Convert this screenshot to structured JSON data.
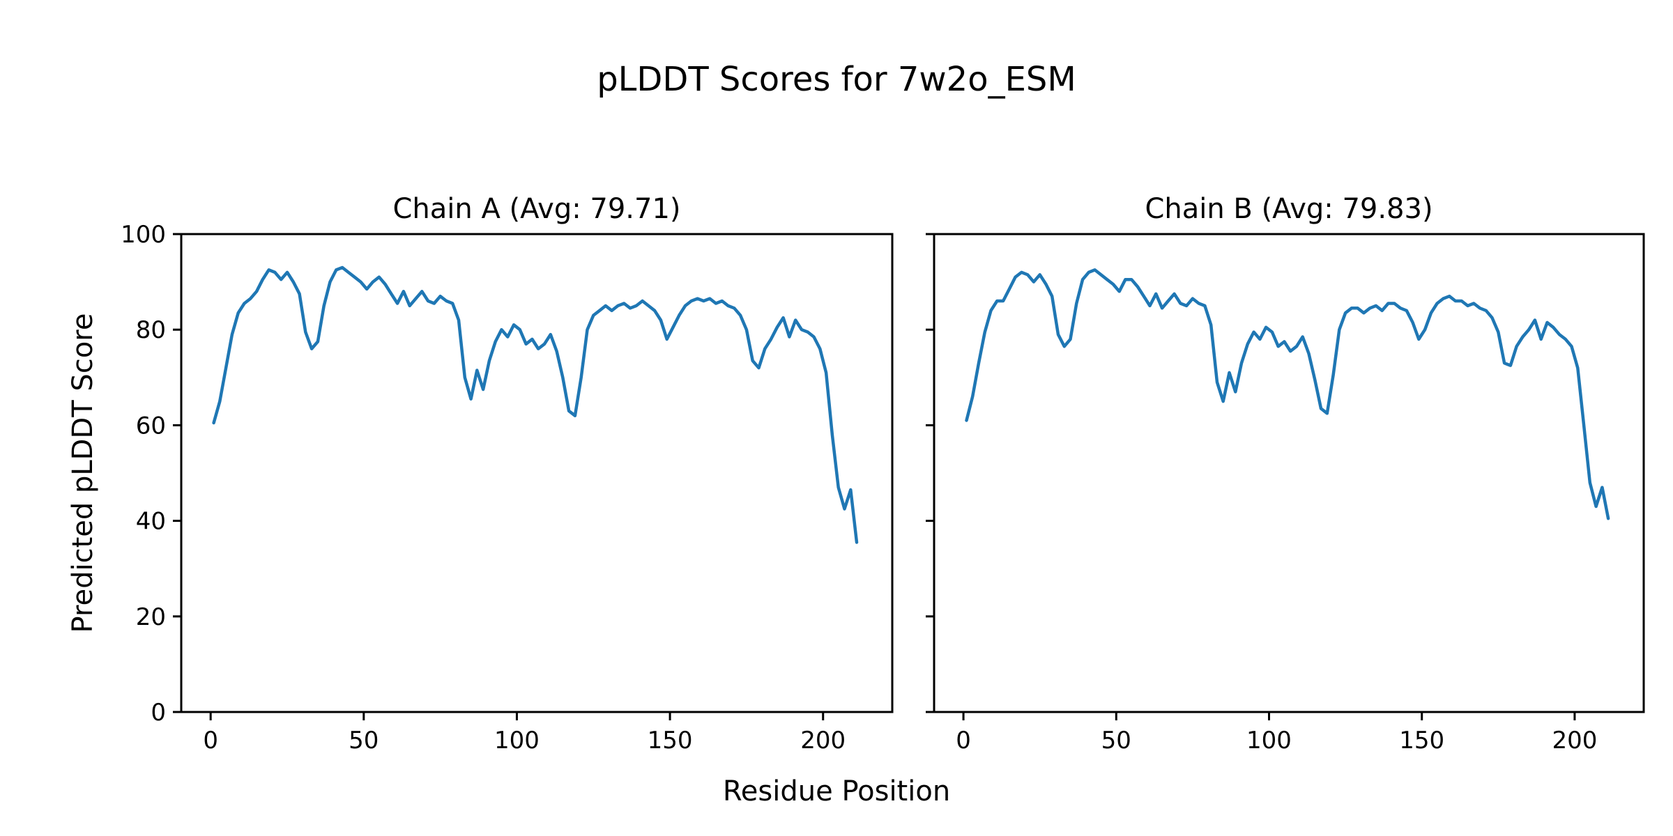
{
  "figure": {
    "title": "pLDDT Scores for 7w2o_ESM",
    "xlabel": "Residue Position",
    "ylabel": "Predicted pLDDT Score",
    "line_color": "#1f77b4",
    "background": "#ffffff"
  },
  "chart_data": [
    {
      "type": "line",
      "title": "Chain A (Avg: 79.71)",
      "series_name": "Chain A pLDDT",
      "avg": 79.71,
      "xlabel": "Residue Position",
      "ylabel": "Predicted pLDDT Score",
      "xlim": [
        -9.6,
        222.6
      ],
      "ylim": [
        0,
        100
      ],
      "xticks": [
        0,
        50,
        100,
        150,
        200
      ],
      "yticks": [
        0,
        20,
        40,
        60,
        80,
        100
      ],
      "grid": false,
      "x": [
        1,
        3,
        5,
        7,
        9,
        11,
        13,
        15,
        17,
        19,
        21,
        23,
        25,
        27,
        29,
        31,
        33,
        35,
        37,
        39,
        41,
        43,
        45,
        47,
        49,
        51,
        53,
        55,
        57,
        59,
        61,
        63,
        65,
        67,
        69,
        71,
        73,
        75,
        77,
        79,
        81,
        83,
        85,
        87,
        89,
        91,
        93,
        95,
        97,
        99,
        101,
        103,
        105,
        107,
        109,
        111,
        113,
        115,
        117,
        119,
        121,
        123,
        125,
        127,
        129,
        131,
        133,
        135,
        137,
        139,
        141,
        143,
        145,
        147,
        149,
        151,
        153,
        155,
        157,
        159,
        161,
        163,
        165,
        167,
        169,
        171,
        173,
        175,
        177,
        179,
        181,
        183,
        185,
        187,
        189,
        191,
        193,
        195,
        197,
        199,
        201,
        203,
        205,
        207,
        209,
        211
      ],
      "y": [
        60.5,
        65,
        72,
        79,
        83.5,
        85.5,
        86.5,
        88,
        90.5,
        92.5,
        92,
        90.5,
        92,
        90,
        87.5,
        79.5,
        76,
        77.5,
        85,
        90,
        92.5,
        93,
        92,
        91,
        90,
        88.5,
        90,
        91,
        89.5,
        87.5,
        85.5,
        88,
        85,
        86.5,
        88,
        86,
        85.5,
        87,
        86,
        85.5,
        82,
        70,
        65.5,
        71.5,
        67.5,
        73.5,
        77.5,
        80,
        78.5,
        81,
        80,
        77,
        78,
        76,
        77,
        79,
        75.5,
        70,
        63,
        62,
        70,
        80,
        83,
        84,
        85,
        84,
        85,
        85.5,
        84.5,
        85,
        86,
        85,
        84,
        82,
        78,
        80.5,
        83,
        85,
        86,
        86.5,
        86,
        86.5,
        85.5,
        86,
        85,
        84.5,
        83,
        80,
        73.5,
        72,
        76,
        78,
        80.5,
        82.5,
        78.5,
        82,
        80,
        79.5,
        78.5,
        76,
        71,
        58,
        47,
        42.5,
        46.5,
        35.5
      ]
    },
    {
      "type": "line",
      "title": "Chain B (Avg: 79.83)",
      "series_name": "Chain B pLDDT",
      "avg": 79.83,
      "xlabel": "Residue Position",
      "ylabel": "Predicted pLDDT Score",
      "xlim": [
        -9.6,
        222.6
      ],
      "ylim": [
        0,
        100
      ],
      "xticks": [
        0,
        50,
        100,
        150,
        200
      ],
      "yticks": [
        0,
        20,
        40,
        60,
        80,
        100
      ],
      "grid": false,
      "x": [
        1,
        3,
        5,
        7,
        9,
        11,
        13,
        15,
        17,
        19,
        21,
        23,
        25,
        27,
        29,
        31,
        33,
        35,
        37,
        39,
        41,
        43,
        45,
        47,
        49,
        51,
        53,
        55,
        57,
        59,
        61,
        63,
        65,
        67,
        69,
        71,
        73,
        75,
        77,
        79,
        81,
        83,
        85,
        87,
        89,
        91,
        93,
        95,
        97,
        99,
        101,
        103,
        105,
        107,
        109,
        111,
        113,
        115,
        117,
        119,
        121,
        123,
        125,
        127,
        129,
        131,
        133,
        135,
        137,
        139,
        141,
        143,
        145,
        147,
        149,
        151,
        153,
        155,
        157,
        159,
        161,
        163,
        165,
        167,
        169,
        171,
        173,
        175,
        177,
        179,
        181,
        183,
        185,
        187,
        189,
        191,
        193,
        195,
        197,
        199,
        201,
        203,
        205,
        207,
        209,
        211
      ],
      "y": [
        61,
        66,
        73,
        79.5,
        84,
        86,
        86,
        88.5,
        91,
        92,
        91.5,
        90,
        91.5,
        89.5,
        87,
        79,
        76.5,
        78,
        85.5,
        90.5,
        92,
        92.5,
        91.5,
        90.5,
        89.5,
        88,
        90.5,
        90.5,
        89,
        87,
        85,
        87.5,
        84.5,
        86,
        87.5,
        85.5,
        85,
        86.5,
        85.5,
        85,
        81,
        69,
        65,
        71,
        67,
        73,
        77,
        79.5,
        78,
        80.5,
        79.5,
        76.5,
        77.5,
        75.5,
        76.5,
        78.5,
        75,
        69.5,
        63.5,
        62.5,
        70.5,
        80,
        83.5,
        84.5,
        84.5,
        83.5,
        84.5,
        85,
        84,
        85.5,
        85.5,
        84.5,
        84,
        81.5,
        78,
        80,
        83.5,
        85.5,
        86.5,
        87,
        86,
        86,
        85,
        85.5,
        84.5,
        84,
        82.5,
        79.5,
        73,
        72.5,
        76.5,
        78.5,
        80,
        82,
        78,
        81.5,
        80.5,
        79,
        78,
        76.5,
        72,
        60,
        48,
        43,
        47,
        40.5
      ]
    }
  ]
}
